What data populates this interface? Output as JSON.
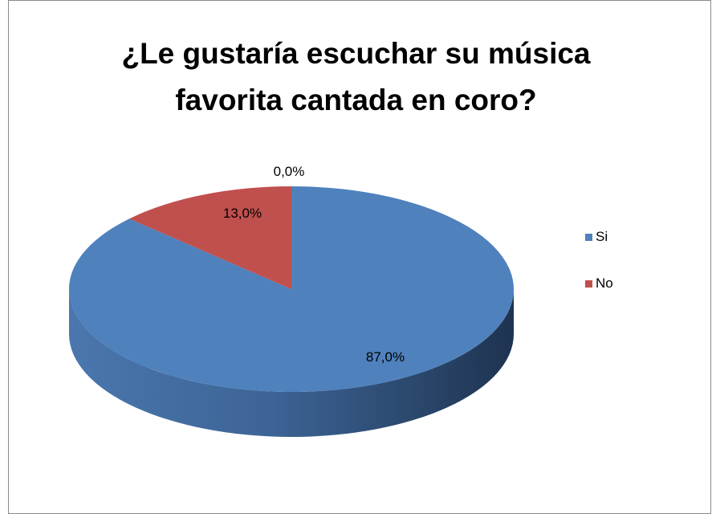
{
  "chart_data": {
    "type": "pie",
    "title_lines": [
      "¿Le gustaría escuchar su música",
      "favorita cantada en coro?"
    ],
    "categories": [
      "Si",
      "No"
    ],
    "values": [
      87.0,
      13.0
    ],
    "data_labels": [
      "87,0%",
      "13,0%"
    ],
    "extra_label": "0,0%",
    "legend": [
      {
        "label": "Si",
        "color": "#4f81bd"
      },
      {
        "label": "No",
        "color": "#c0504d"
      }
    ],
    "legend_position": "right",
    "style": "3d"
  }
}
